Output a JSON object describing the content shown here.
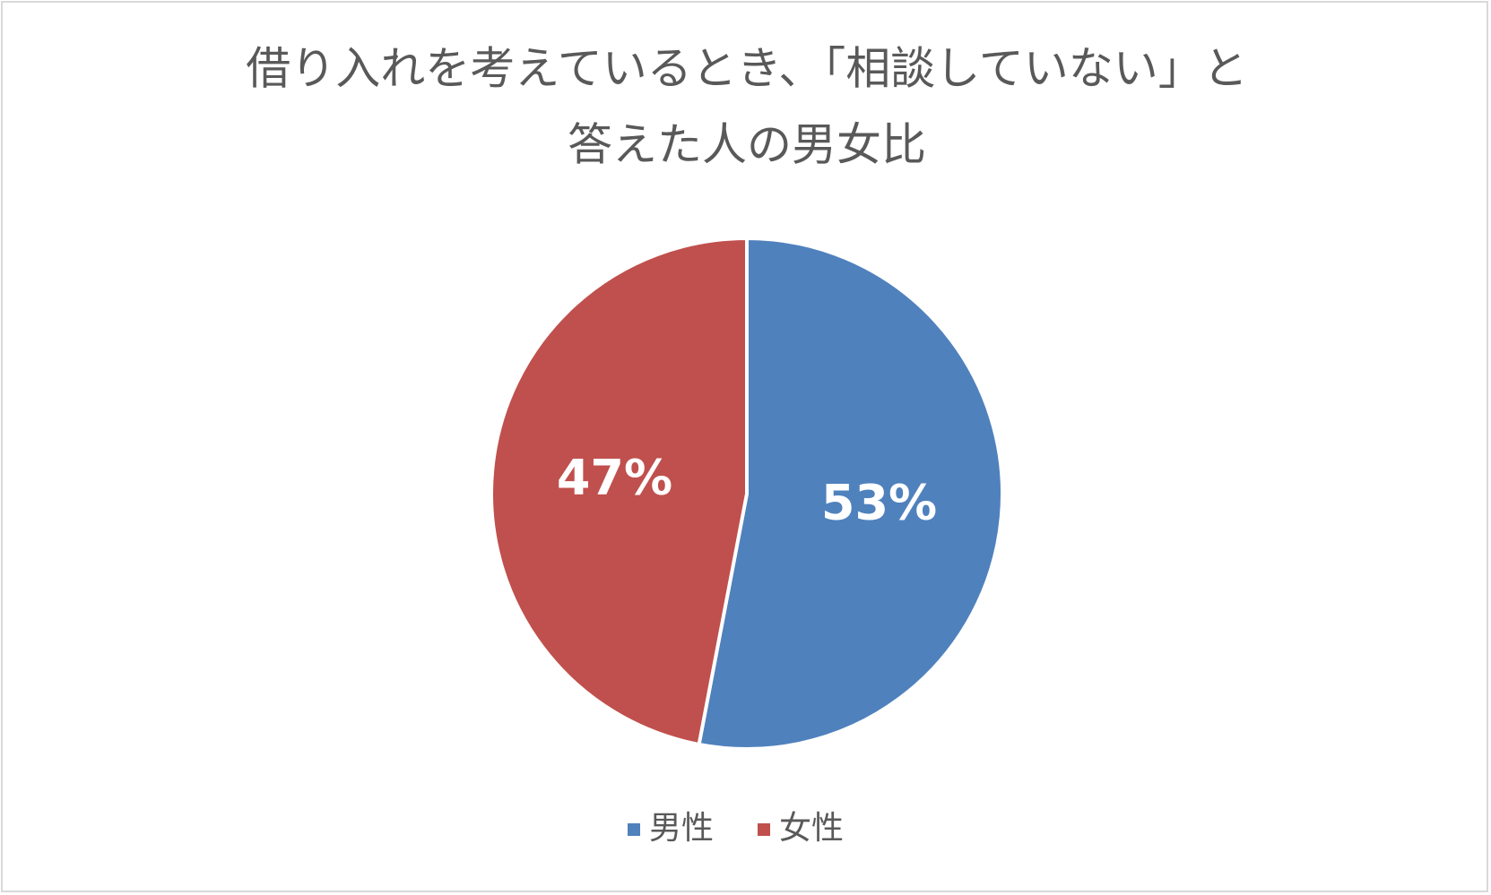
{
  "chart_data": {
    "type": "pie",
    "title": [
      "借り入れを考えているとき、「相談していない」と",
      "答えた人の男女比"
    ],
    "categories": [
      "男性",
      "女性"
    ],
    "values": [
      53,
      47
    ],
    "value_labels": [
      "53%",
      "47%"
    ],
    "colors": [
      "#4f81bd",
      "#c0504d"
    ],
    "legend": "bottom"
  }
}
